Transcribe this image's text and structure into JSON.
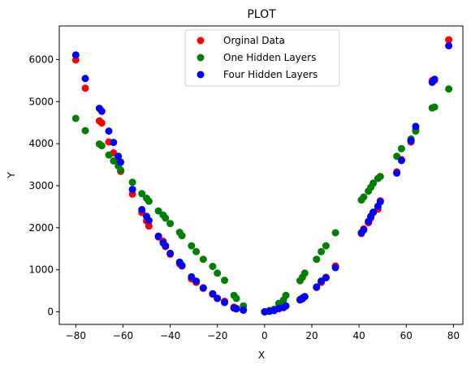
{
  "chart_data": {
    "type": "scatter",
    "title": "PLOT",
    "xlabel": "X",
    "ylabel": "Y",
    "xlim": [
      -87,
      84
    ],
    "ylim": [
      -300,
      6800
    ],
    "xticks": [
      -80,
      -60,
      -40,
      -20,
      0,
      20,
      40,
      60,
      80
    ],
    "yticks": [
      0,
      1000,
      2000,
      3000,
      4000,
      5000,
      6000
    ],
    "grid": false,
    "legend_position": "top-center",
    "series": [
      {
        "name": "Orginal Data",
        "color": "#ff0000",
        "x": [
          -80,
          -76,
          -70,
          -69,
          -66,
          -64,
          -62,
          -61,
          -56,
          -52,
          -50,
          -49,
          -45,
          -43,
          -42,
          -40,
          -36,
          -35,
          -31,
          -29,
          -26,
          -22,
          -20,
          -17,
          -13,
          -12,
          -9,
          0,
          2,
          4,
          6,
          8,
          9,
          15,
          16,
          17,
          22,
          24,
          26,
          30,
          41,
          42,
          44,
          45,
          46,
          48,
          49,
          56,
          58,
          62,
          64,
          71,
          72,
          78
        ],
        "y": [
          5990,
          5320,
          4540,
          4490,
          4040,
          3780,
          3560,
          3340,
          2800,
          2360,
          2160,
          2040,
          1780,
          1680,
          1550,
          1370,
          1140,
          1090,
          780,
          700,
          560,
          420,
          320,
          250,
          110,
          80,
          40,
          0,
          20,
          40,
          70,
          110,
          140,
          280,
          330,
          360,
          580,
          700,
          820,
          1090,
          1860,
          1970,
          2120,
          2230,
          2360,
          2440,
          2640,
          3330,
          3620,
          4040,
          4330,
          5500,
          5510,
          6470
        ]
      },
      {
        "name": "One Hidden Layers",
        "color": "#008000",
        "x": [
          -80,
          -76,
          -70,
          -69,
          -66,
          -64,
          -62,
          -61,
          -56,
          -52,
          -50,
          -49,
          -45,
          -43,
          -42,
          -40,
          -36,
          -35,
          -31,
          -29,
          -26,
          -22,
          -20,
          -17,
          -13,
          -12,
          -9,
          0,
          2,
          4,
          6,
          8,
          9,
          15,
          16,
          17,
          22,
          24,
          26,
          30,
          41,
          42,
          44,
          45,
          46,
          48,
          49,
          56,
          58,
          62,
          64,
          71,
          72,
          78
        ],
        "y": [
          4600,
          4310,
          3990,
          3950,
          3730,
          3590,
          3470,
          3370,
          3080,
          2810,
          2700,
          2630,
          2400,
          2300,
          2230,
          2100,
          1890,
          1810,
          1570,
          1430,
          1250,
          1080,
          920,
          750,
          390,
          320,
          140,
          0,
          30,
          60,
          200,
          280,
          390,
          740,
          820,
          920,
          1250,
          1430,
          1570,
          1880,
          2660,
          2730,
          2870,
          2960,
          3060,
          3170,
          3220,
          3700,
          3880,
          4110,
          4300,
          4850,
          4870,
          5300
        ]
      },
      {
        "name": "Four Hidden Layers",
        "color": "#0000ff",
        "x": [
          -80,
          -76,
          -70,
          -69,
          -66,
          -64,
          -62,
          -61,
          -56,
          -52,
          -50,
          -49,
          -45,
          -43,
          -42,
          -40,
          -36,
          -35,
          -31,
          -29,
          -26,
          -22,
          -20,
          -17,
          -13,
          -12,
          -9,
          0,
          2,
          4,
          6,
          8,
          9,
          15,
          16,
          17,
          22,
          24,
          26,
          30,
          41,
          42,
          44,
          45,
          46,
          48,
          49,
          56,
          58,
          62,
          64,
          71,
          72,
          78
        ],
        "y": [
          6110,
          5550,
          4840,
          4770,
          4300,
          4030,
          3700,
          3560,
          2910,
          2430,
          2270,
          2170,
          1800,
          1640,
          1570,
          1390,
          1180,
          1100,
          830,
          730,
          570,
          430,
          320,
          220,
          90,
          70,
          40,
          0,
          10,
          30,
          80,
          100,
          140,
          290,
          310,
          360,
          590,
          730,
          810,
          1050,
          1880,
          1950,
          2150,
          2270,
          2370,
          2510,
          2620,
          3300,
          3600,
          4070,
          4410,
          5460,
          5530,
          6330
        ]
      }
    ]
  }
}
